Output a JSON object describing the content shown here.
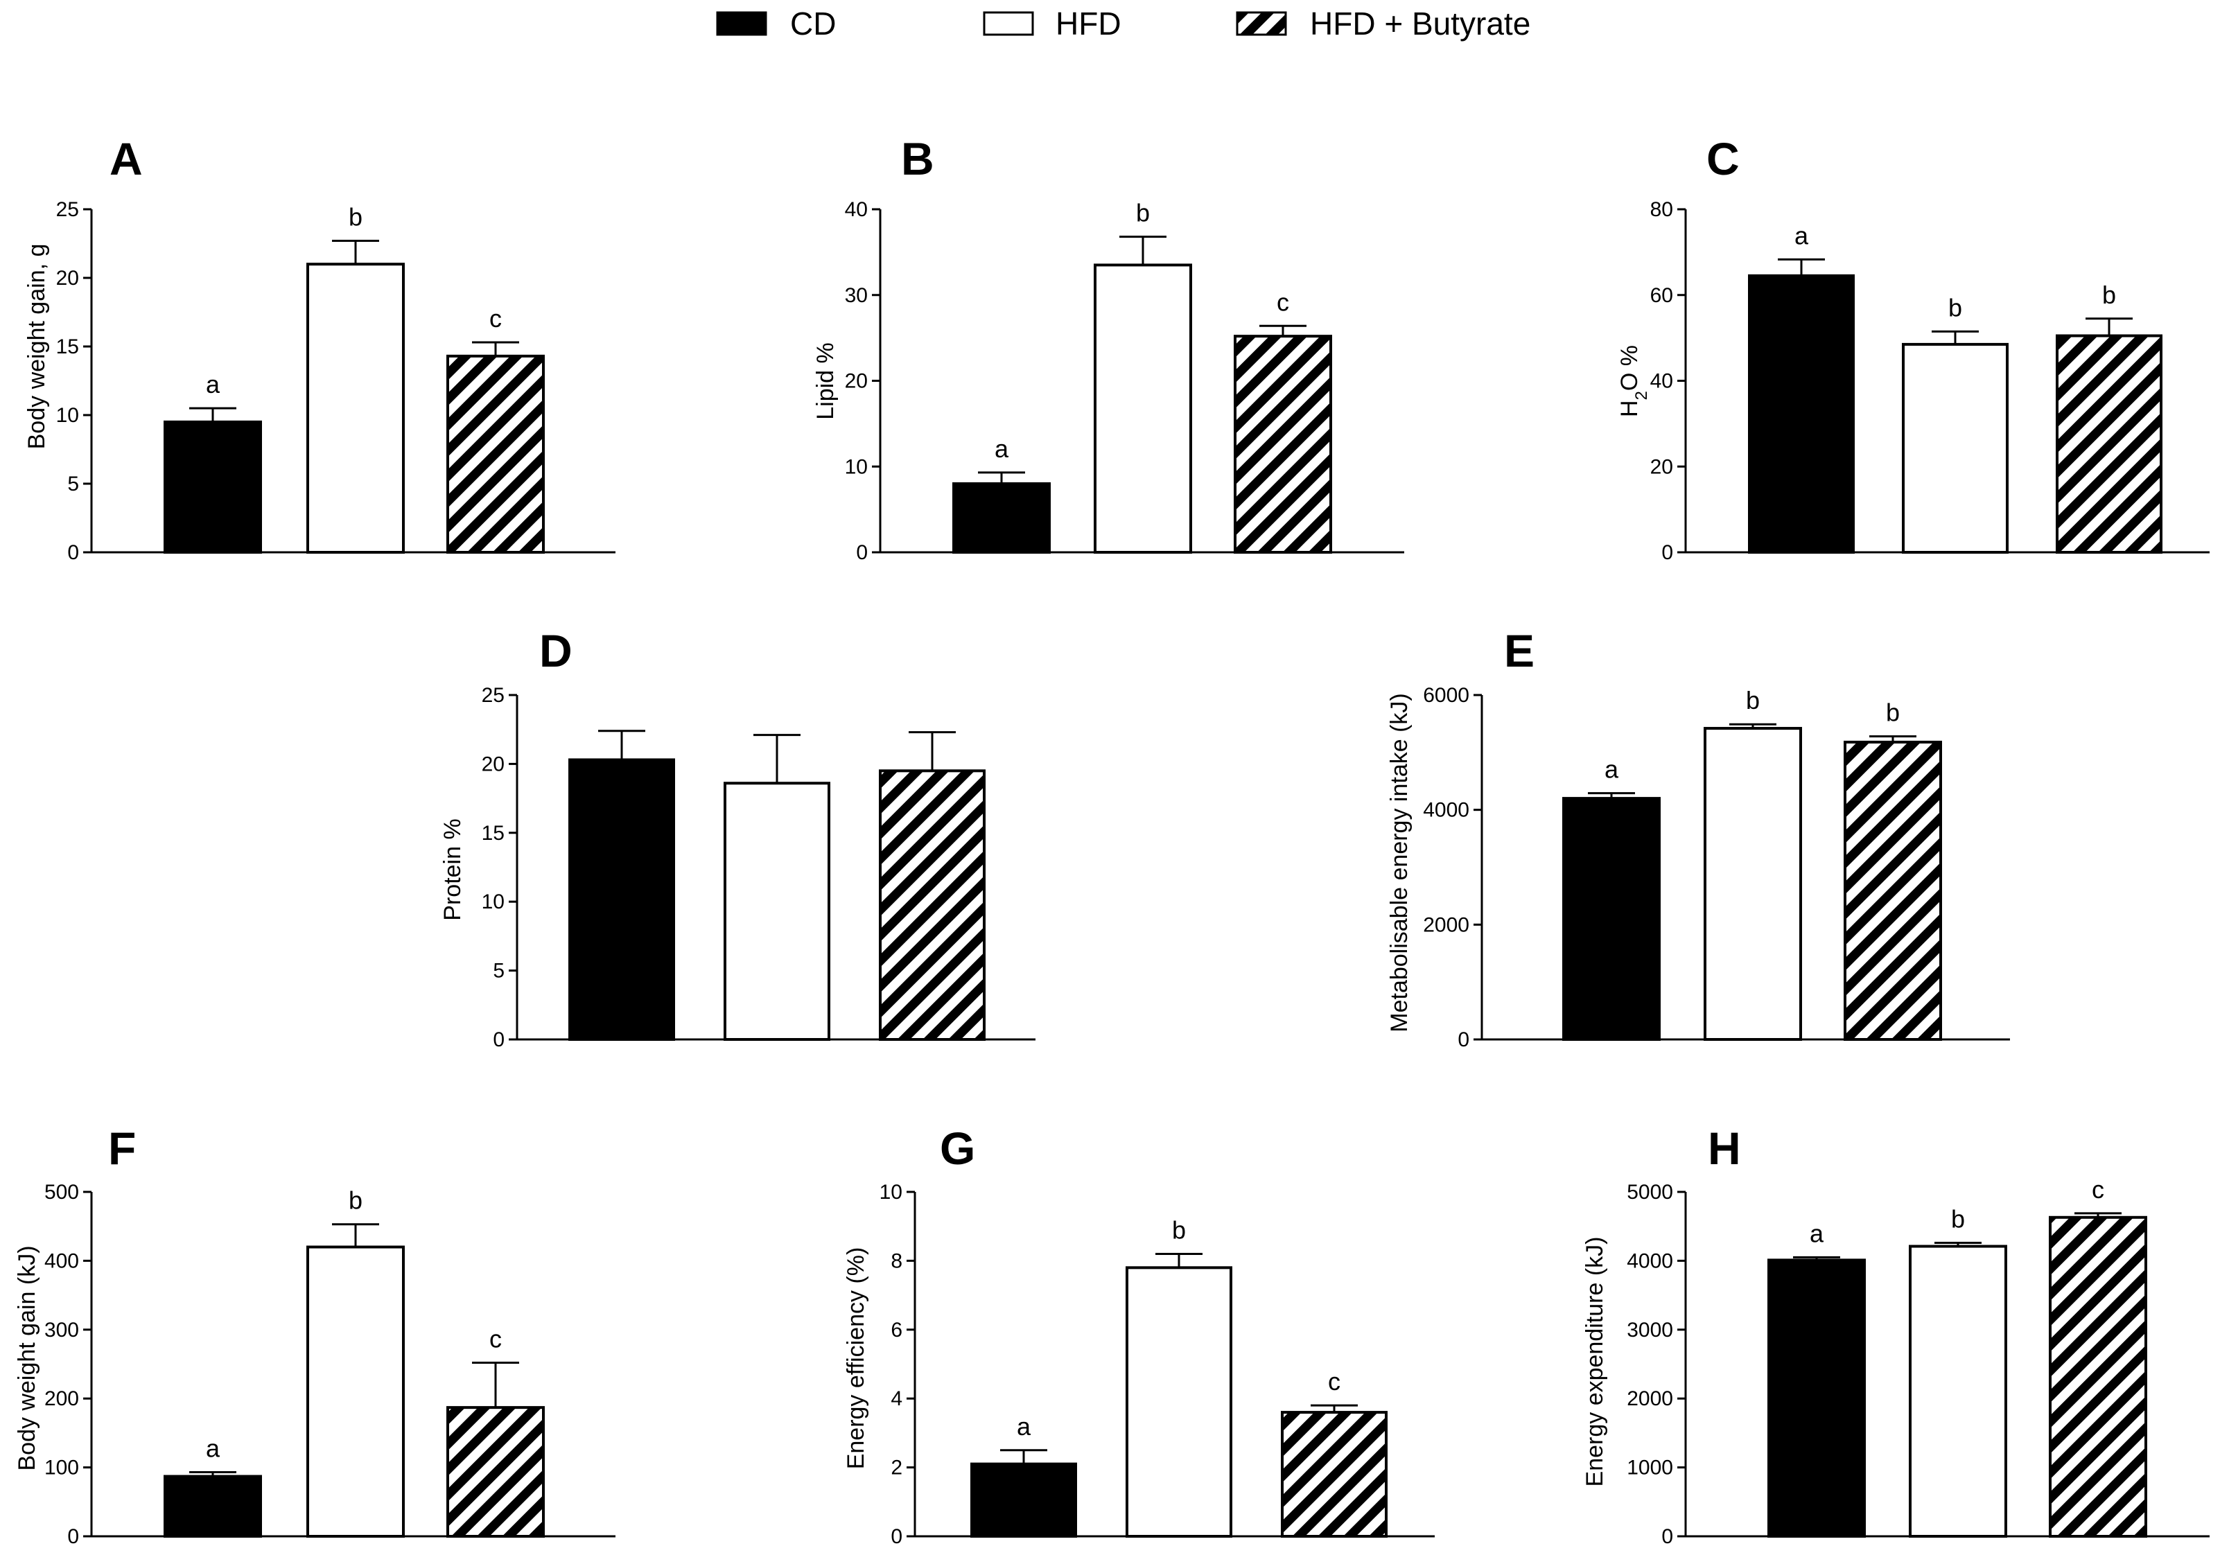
{
  "legend": [
    {
      "name": "CD",
      "fill": "solid"
    },
    {
      "name": "HFD",
      "fill": "open"
    },
    {
      "name": "HFD + Butyrate",
      "fill": "hatched"
    }
  ],
  "chart_data": [
    {
      "panel": "A",
      "type": "bar",
      "categories": [
        "CD",
        "HFD",
        "HFD + Butyrate"
      ],
      "values": [
        9.5,
        21.0,
        14.3
      ],
      "errors": [
        1.0,
        1.7,
        1.0
      ],
      "letters": [
        "a",
        "b",
        "c"
      ],
      "ylabel": "Body weight gain, g",
      "ylim": [
        0,
        25
      ],
      "yticks": [
        0,
        5,
        10,
        15,
        20,
        25
      ]
    },
    {
      "panel": "B",
      "type": "bar",
      "categories": [
        "CD",
        "HFD",
        "HFD + Butyrate"
      ],
      "values": [
        8.0,
        33.5,
        25.2
      ],
      "errors": [
        1.3,
        3.3,
        1.2
      ],
      "letters": [
        "a",
        "b",
        "c"
      ],
      "ylabel": "Lipid %",
      "ylim": [
        0,
        40
      ],
      "yticks": [
        0,
        10,
        20,
        30,
        40
      ]
    },
    {
      "panel": "C",
      "type": "bar",
      "categories": [
        "CD",
        "HFD",
        "HFD + Butyrate"
      ],
      "values": [
        64.5,
        48.5,
        50.5
      ],
      "errors": [
        3.8,
        3.0,
        4.0
      ],
      "letters": [
        "a",
        "b",
        "b"
      ],
      "ylabel": "H2O %",
      "ylim": [
        0,
        80
      ],
      "yticks": [
        0,
        20,
        40,
        60,
        80
      ]
    },
    {
      "panel": "D",
      "type": "bar",
      "categories": [
        "CD",
        "HFD",
        "HFD + Butyrate"
      ],
      "values": [
        20.3,
        18.6,
        19.5
      ],
      "errors": [
        2.1,
        3.5,
        2.8
      ],
      "letters": [
        "",
        "",
        ""
      ],
      "ylabel": "Protein %",
      "ylim": [
        0,
        25
      ],
      "yticks": [
        0,
        5,
        10,
        15,
        20,
        25
      ]
    },
    {
      "panel": "E",
      "type": "bar",
      "categories": [
        "CD",
        "HFD",
        "HFD + Butyrate"
      ],
      "values": [
        4200,
        5420,
        5180
      ],
      "errors": [
        90,
        70,
        100
      ],
      "letters": [
        "a",
        "b",
        "b"
      ],
      "ylabel": "Metabolisable energy intake (kJ)",
      "ylim": [
        0,
        6000
      ],
      "yticks": [
        0,
        2000,
        4000,
        6000
      ]
    },
    {
      "panel": "F",
      "type": "bar",
      "categories": [
        "CD",
        "HFD",
        "HFD + Butyrate"
      ],
      "values": [
        87,
        420,
        187
      ],
      "errors": [
        6,
        33,
        65
      ],
      "letters": [
        "a",
        "b",
        "c"
      ],
      "ylabel": "Body weight gain (kJ)",
      "ylim": [
        0,
        500
      ],
      "yticks": [
        0,
        100,
        200,
        300,
        400,
        500
      ]
    },
    {
      "panel": "G",
      "type": "bar",
      "categories": [
        "CD",
        "HFD",
        "HFD + Butyrate"
      ],
      "values": [
        2.1,
        7.8,
        3.6
      ],
      "errors": [
        0.4,
        0.4,
        0.2
      ],
      "letters": [
        "a",
        "b",
        "c"
      ],
      "ylabel": "Energy efficiency (%)",
      "ylim": [
        0,
        10
      ],
      "yticks": [
        0,
        2,
        4,
        6,
        8,
        10
      ]
    },
    {
      "panel": "H",
      "type": "bar",
      "categories": [
        "CD",
        "HFD",
        "HFD + Butyrate"
      ],
      "values": [
        4010,
        4210,
        4630
      ],
      "errors": [
        40,
        50,
        60
      ],
      "letters": [
        "a",
        "b",
        "c"
      ],
      "ylabel": "Energy expenditure (kJ)",
      "ylim": [
        0,
        5000
      ],
      "yticks": [
        0,
        1000,
        2000,
        3000,
        4000,
        5000
      ]
    }
  ]
}
